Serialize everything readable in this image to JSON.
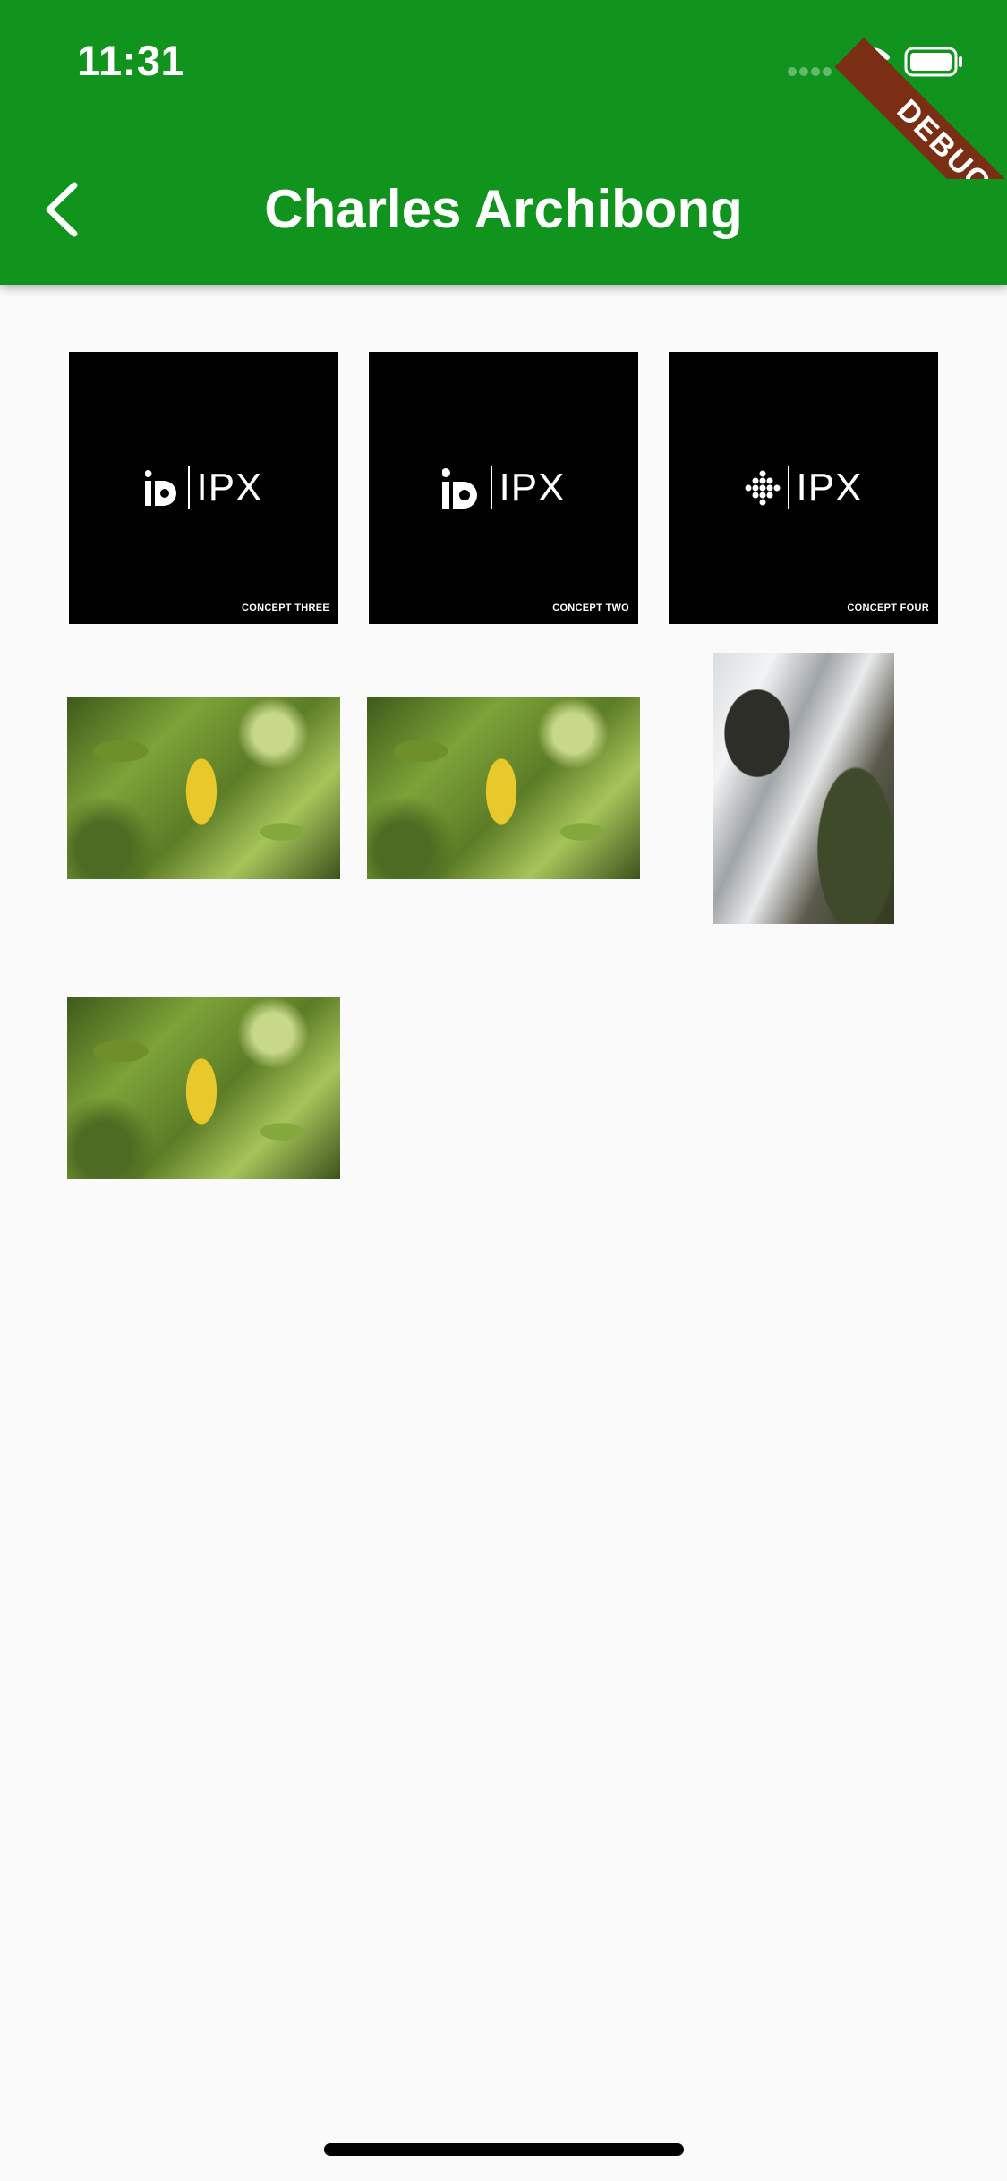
{
  "status_bar": {
    "time": "11:31"
  },
  "debug_banner": {
    "label": "DEBUG"
  },
  "appbar": {
    "title": "Charles Archibong"
  },
  "colors": {
    "appbar": "#11941e",
    "background": "#fafafa"
  },
  "gallery": {
    "logo_tiles": [
      {
        "logo_text": "IPX",
        "concept": "CONCEPT THREE"
      },
      {
        "logo_text": "IPX",
        "concept": "CONCEPT TWO"
      },
      {
        "logo_text": "IPX",
        "concept": "CONCEPT FOUR"
      }
    ]
  }
}
